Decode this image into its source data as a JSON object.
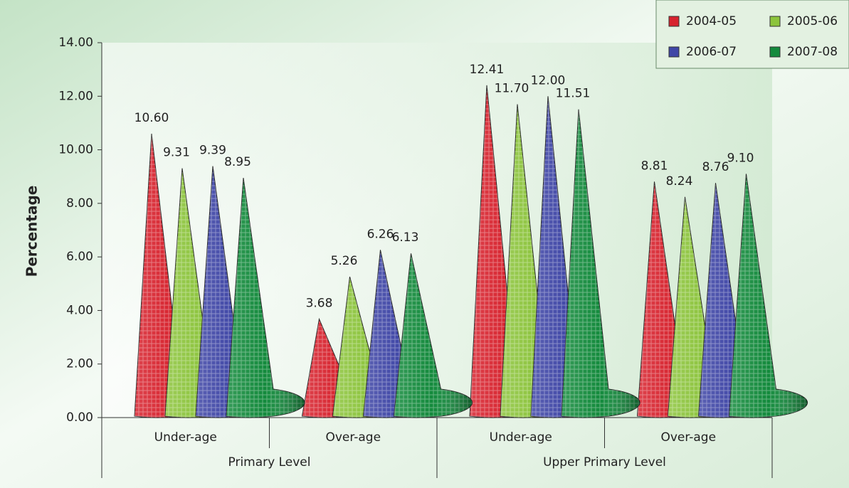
{
  "chart_data": {
    "type": "cone",
    "y_label": "Percentage",
    "categories": [
      "Under-age",
      "Over-age",
      "Under-age",
      "Over-age"
    ],
    "groups": [
      "Primary Level",
      "Upper Primary Level"
    ],
    "series": [
      {
        "name": "2004-05",
        "color": "#d7232e",
        "values": [
          10.6,
          3.68,
          12.41,
          8.81
        ],
        "value_labels": [
          "10.60",
          "3.68",
          "12.41",
          "8.81"
        ]
      },
      {
        "name": "2005-06",
        "color": "#8cc43c",
        "values": [
          9.31,
          5.26,
          11.7,
          8.24
        ],
        "value_labels": [
          "9.31",
          "5.26",
          "11.70",
          "8.24"
        ]
      },
      {
        "name": "2006-07",
        "color": "#3f46a6",
        "values": [
          9.39,
          6.26,
          12.0,
          8.76
        ],
        "value_labels": [
          "9.39",
          "6.26",
          "12.00",
          "8.76"
        ]
      },
      {
        "name": "2007-08",
        "color": "#138a3c",
        "values": [
          8.95,
          6.13,
          11.51,
          9.1
        ],
        "value_labels": [
          "8.95",
          "6.13",
          "11.51",
          "9.10"
        ]
      }
    ],
    "ylim": [
      0,
      14
    ],
    "yticks": [
      {
        "value": 0,
        "label": "0.00"
      },
      {
        "value": 2,
        "label": "2.00"
      },
      {
        "value": 4,
        "label": "4.00"
      },
      {
        "value": 6,
        "label": "6.00"
      },
      {
        "value": 8,
        "label": "8.00"
      },
      {
        "value": 10,
        "label": "10.00"
      },
      {
        "value": 12,
        "label": "12.00"
      },
      {
        "value": 14,
        "label": "14.00"
      }
    ],
    "legend": "top-right"
  }
}
